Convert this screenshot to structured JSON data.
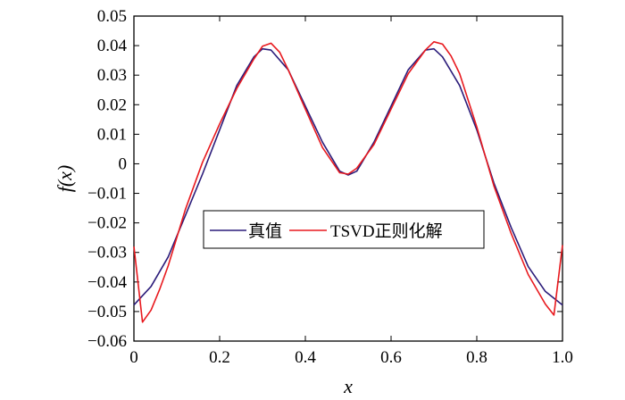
{
  "chart_data": {
    "type": "line",
    "title": "",
    "xlabel": "x",
    "ylabel": "f(x)",
    "xlim": [
      0,
      1.0
    ],
    "ylim": [
      -0.06,
      0.05
    ],
    "x_ticks": [
      "0",
      "0.2",
      "0.4",
      "0.6",
      "0.8",
      "1.0"
    ],
    "y_ticks": [
      "0.05",
      "0.04",
      "0.03",
      "0.02",
      "0.01",
      "0",
      "−0.01",
      "−0.02",
      "−0.03",
      "−0.04",
      "−0.05",
      "−0.06"
    ],
    "grid": false,
    "legend_position": "center-left",
    "series": [
      {
        "name": "真值",
        "color": "#2b1c7a",
        "x": [
          0.0,
          0.04,
          0.08,
          0.12,
          0.16,
          0.2,
          0.24,
          0.28,
          0.3,
          0.32,
          0.36,
          0.4,
          0.44,
          0.48,
          0.5,
          0.52,
          0.56,
          0.6,
          0.64,
          0.68,
          0.7,
          0.72,
          0.76,
          0.8,
          0.84,
          0.88,
          0.92,
          0.96,
          1.0
        ],
        "y": [
          -0.0478,
          -0.0415,
          -0.0315,
          -0.0175,
          -0.0035,
          0.0115,
          0.0265,
          0.0362,
          0.0389,
          0.0385,
          0.0318,
          0.0195,
          0.0073,
          -0.0025,
          -0.0038,
          -0.0025,
          0.0073,
          0.0195,
          0.0318,
          0.0385,
          0.0389,
          0.0362,
          0.0265,
          0.0115,
          -0.0065,
          -0.0215,
          -0.0348,
          -0.0432,
          -0.0478
        ]
      },
      {
        "name": "TSVD正则化解",
        "color": "#e8191e",
        "x": [
          0.0,
          0.02,
          0.04,
          0.06,
          0.08,
          0.12,
          0.16,
          0.2,
          0.24,
          0.28,
          0.3,
          0.32,
          0.34,
          0.36,
          0.4,
          0.44,
          0.48,
          0.5,
          0.52,
          0.56,
          0.6,
          0.64,
          0.68,
          0.7,
          0.72,
          0.74,
          0.76,
          0.8,
          0.84,
          0.88,
          0.92,
          0.96,
          0.98,
          1.0
        ],
        "y": [
          -0.028,
          -0.0536,
          -0.0495,
          -0.0425,
          -0.0345,
          -0.0155,
          0.0005,
          0.0135,
          0.0255,
          0.0355,
          0.0398,
          0.0408,
          0.0378,
          0.0318,
          0.0185,
          0.0055,
          -0.003,
          -0.0035,
          -0.0015,
          0.0065,
          0.0185,
          0.0305,
          0.0385,
          0.0413,
          0.0405,
          0.0365,
          0.0305,
          0.0125,
          -0.0075,
          -0.0235,
          -0.0375,
          -0.0475,
          -0.0512,
          -0.0275
        ]
      }
    ]
  }
}
